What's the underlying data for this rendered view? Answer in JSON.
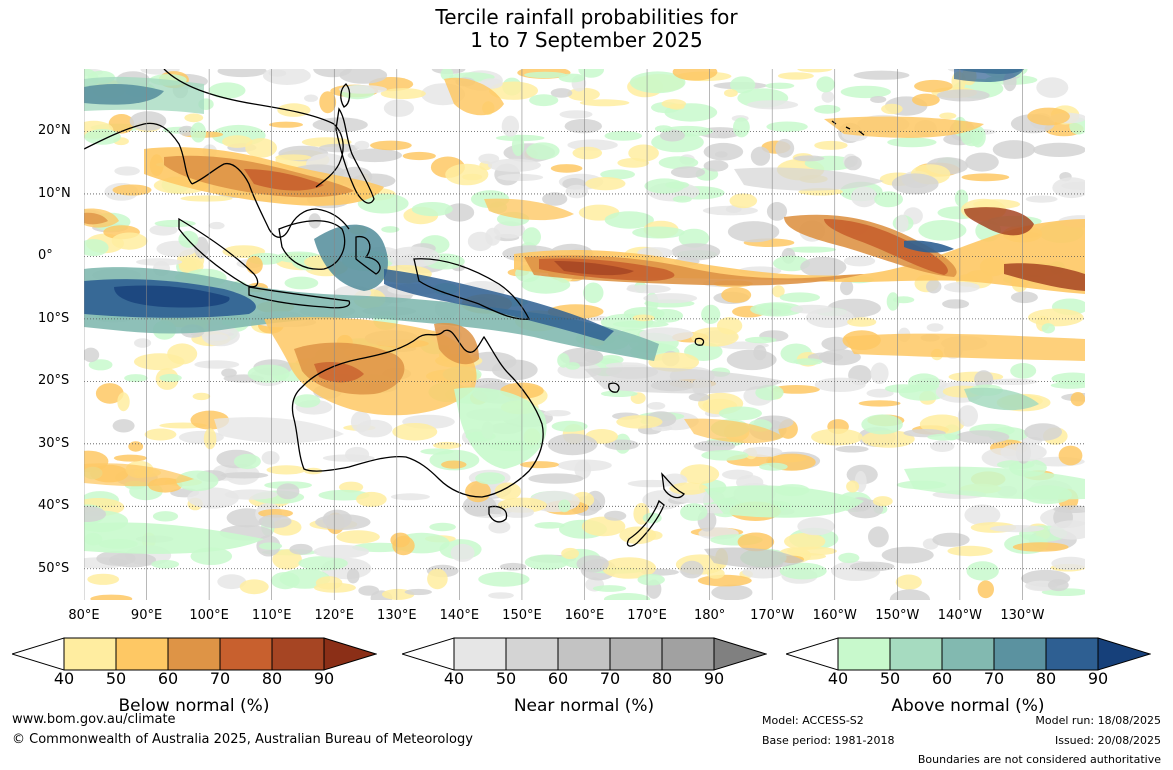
{
  "title": {
    "line1": "Tercile rainfall probabilities for",
    "line2": "1 to 7 September 2025"
  },
  "map": {
    "lat_labels": [
      "20°N",
      "10°N",
      "0°",
      "10°S",
      "20°S",
      "30°S",
      "40°S",
      "50°S"
    ],
    "lon_labels": [
      "80°E",
      "90°E",
      "100°E",
      "110°E",
      "120°E",
      "130°E",
      "140°E",
      "150°E",
      "160°E",
      "170°E",
      "180°",
      "170°W",
      "160°W",
      "150°W",
      "140°W",
      "130°W"
    ],
    "lat_range": [
      -55,
      30
    ],
    "lon_range": [
      80,
      240
    ]
  },
  "legends": [
    {
      "title": "Below normal (%)",
      "ticks": [
        "40",
        "50",
        "60",
        "70",
        "80",
        "90"
      ],
      "colors": [
        "#ffeda0",
        "#fec864",
        "#de9446",
        "#c8602e",
        "#a64523",
        "#8b2f17"
      ]
    },
    {
      "title": "Near normal (%)",
      "ticks": [
        "40",
        "50",
        "60",
        "70",
        "80",
        "90"
      ],
      "colors": [
        "#e6e6e6",
        "#d4d4d4",
        "#c3c3c3",
        "#b2b2b2",
        "#a1a1a1",
        "#808080"
      ]
    },
    {
      "title": "Above normal (%)",
      "ticks": [
        "40",
        "50",
        "60",
        "70",
        "80",
        "90"
      ],
      "colors": [
        "#c8f9cc",
        "#a6dbc0",
        "#82b9b0",
        "#5b92a0",
        "#2e5f92",
        "#16407a"
      ]
    }
  ],
  "footer": {
    "website": "www.bom.gov.au/climate",
    "copyright": "© Commonwealth of Australia 2025, Australian Bureau of Meteorology",
    "model": "Model: ACCESS-S2",
    "base_period": "Base period: 1981-2018",
    "model_run": "Model run: 18/08/2025",
    "issued": "Issued: 20/08/2025",
    "disclaimer": "Boundaries are not considered authoritative"
  }
}
